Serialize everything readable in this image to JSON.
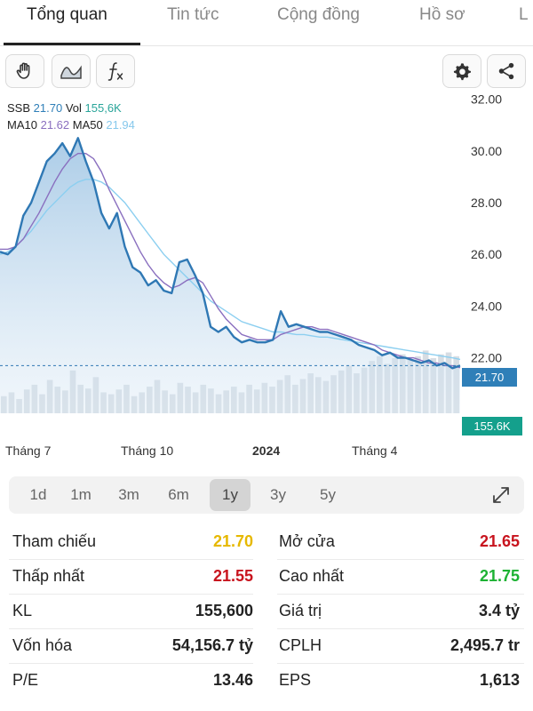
{
  "tabs": [
    "Tổng quan",
    "Tin tức",
    "Cộng đồng",
    "Hồ sơ",
    "L"
  ],
  "toolbar": {
    "left_icons": [
      "hand-pan-icon",
      "line-style-icon",
      "function-icon"
    ],
    "right_icons": [
      "gear-icon",
      "share-icon"
    ]
  },
  "legend": {
    "symbol": "SSB",
    "price": "21.70",
    "vol_label": "Vol",
    "vol": "155,6K",
    "ma10_label": "MA10",
    "ma10": "21.62",
    "ma50_label": "MA50",
    "ma50": "21.94"
  },
  "chart_data": {
    "type": "line",
    "y_ticks": [
      "32.00",
      "30.00",
      "28.00",
      "26.00",
      "24.00",
      "22.00"
    ],
    "ylim": [
      20.2,
      32.4
    ],
    "x_ticks": [
      "Tháng 7",
      "Tháng 10",
      "2024",
      "Tháng 4"
    ],
    "price_label": "21.70",
    "volume_label": "155.6K",
    "series": [
      {
        "values": [
          26.1,
          26.0,
          26.3,
          27.5,
          28.0,
          28.8,
          29.6,
          29.9,
          30.3,
          29.8,
          30.5,
          29.6,
          28.8,
          27.6,
          27.0,
          27.6,
          26.3,
          25.5,
          25.3,
          24.8,
          25.0,
          24.6,
          24.5,
          25.7,
          25.8,
          25.2,
          24.5,
          23.2,
          23.0,
          23.2,
          22.8,
          22.6,
          22.7,
          22.6,
          22.6,
          22.7,
          23.8,
          23.2,
          23.3,
          23.2,
          23.1,
          23.0,
          23.0,
          22.9,
          22.8,
          22.7,
          22.5,
          22.4,
          22.3,
          22.1,
          22.2,
          22.0,
          22.0,
          21.9,
          21.8,
          21.9,
          21.7,
          21.8,
          21.6,
          21.7
        ]
      },
      {
        "name": "MA10",
        "values": [
          26.2,
          26.2,
          26.3,
          26.6,
          27.1,
          27.6,
          28.2,
          28.8,
          29.3,
          29.7,
          29.9,
          29.9,
          29.7,
          29.2,
          28.5,
          27.9,
          27.3,
          26.7,
          26.1,
          25.6,
          25.2,
          24.9,
          24.7,
          24.8,
          25.0,
          25.1,
          24.9,
          24.4,
          23.9,
          23.5,
          23.2,
          22.9,
          22.8,
          22.7,
          22.7,
          22.7,
          22.9,
          23.0,
          23.1,
          23.2,
          23.2,
          23.1,
          23.1,
          23.0,
          22.9,
          22.8,
          22.7,
          22.6,
          22.5,
          22.3,
          22.2,
          22.1,
          22.0,
          22.0,
          21.9,
          21.8,
          21.8,
          21.7,
          21.7,
          21.62
        ]
      },
      {
        "name": "MA50",
        "values": [
          26.0,
          26.1,
          26.3,
          26.6,
          26.9,
          27.3,
          27.7,
          28.0,
          28.3,
          28.6,
          28.8,
          28.9,
          28.9,
          28.8,
          28.6,
          28.3,
          28.0,
          27.6,
          27.2,
          26.8,
          26.4,
          26.0,
          25.7,
          25.4,
          25.1,
          24.8,
          24.5,
          24.2,
          24.0,
          23.8,
          23.6,
          23.4,
          23.3,
          23.2,
          23.1,
          23.0,
          23.0,
          22.95,
          22.9,
          22.9,
          22.85,
          22.8,
          22.8,
          22.75,
          22.7,
          22.65,
          22.6,
          22.55,
          22.5,
          22.45,
          22.4,
          22.35,
          22.3,
          22.25,
          22.2,
          22.15,
          22.1,
          22.05,
          22.0,
          21.94
        ]
      }
    ],
    "volume": [
      0.18,
      0.22,
      0.15,
      0.25,
      0.3,
      0.2,
      0.35,
      0.28,
      0.24,
      0.45,
      0.3,
      0.26,
      0.38,
      0.22,
      0.2,
      0.25,
      0.3,
      0.18,
      0.22,
      0.28,
      0.35,
      0.24,
      0.2,
      0.32,
      0.28,
      0.22,
      0.3,
      0.26,
      0.2,
      0.24,
      0.28,
      0.22,
      0.3,
      0.25,
      0.32,
      0.28,
      0.35,
      0.4,
      0.3,
      0.36,
      0.42,
      0.38,
      0.34,
      0.4,
      0.45,
      0.5,
      0.42,
      0.48,
      0.55,
      0.6,
      0.52,
      0.58,
      0.62,
      0.56,
      0.6,
      0.66,
      0.58,
      0.62,
      0.64,
      0.6
    ]
  },
  "periods": [
    "1d",
    "1m",
    "3m",
    "6m",
    "1y",
    "3y",
    "5y"
  ],
  "active_period": "1y",
  "stats": [
    {
      "left_label": "Tham chiếu",
      "left_value": "21.70",
      "left_color": "#e6b800",
      "right_label": "Mở cửa",
      "right_value": "21.65",
      "right_color": "#c8141e"
    },
    {
      "left_label": "Thấp nhất",
      "left_value": "21.55",
      "left_color": "#c8141e",
      "right_label": "Cao nhất",
      "right_value": "21.75",
      "right_color": "#1db233"
    },
    {
      "left_label": "KL",
      "left_value": "155,600",
      "left_color": "#222222",
      "right_label": "Giá trị",
      "right_value": "3.4 tỷ",
      "right_color": "#222222"
    },
    {
      "left_label": "Vốn hóa",
      "left_value": "54,156.7 tỷ",
      "left_color": "#222222",
      "right_label": "CPLH",
      "right_value": "2,495.7 tr",
      "right_color": "#222222"
    },
    {
      "left_label": "P/E",
      "left_value": "13.46",
      "left_color": "#222222",
      "right_label": "EPS",
      "right_value": "1,613",
      "right_color": "#222222"
    }
  ]
}
